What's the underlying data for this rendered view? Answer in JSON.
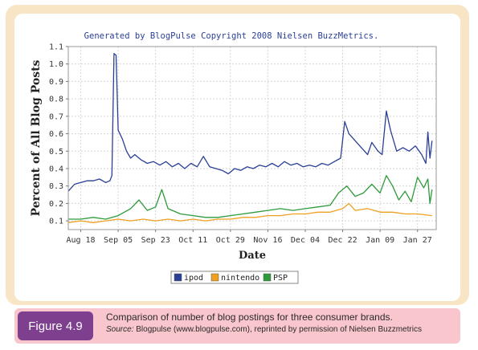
{
  "header": {
    "title": "Generated by BlogPulse Copyright 2008 Nielsen BuzzMetrics."
  },
  "figure": {
    "label": "Figure 4.9",
    "caption": "Comparison of number of blog postings for three consumer brands.",
    "source_lead": "Source:",
    "source_text": "Blogpulse (www.blogpulse.com), reprinted by permission of Nielsen Buzzmetrics"
  },
  "colors": {
    "ipod": "#2a3f96",
    "nintendo": "#f0a020",
    "PSP": "#2e9a3a",
    "frame": "#f8e5c5",
    "caption_bar": "#f8c6cc",
    "figure_label": "#7d3f8e",
    "title": "#2a3f96"
  },
  "chart_data": {
    "type": "line",
    "title": "Generated by BlogPulse Copyright 2008 Nielsen BuzzMetrics.",
    "xlabel": "Date",
    "ylabel": "Percent of All Blog Posts",
    "ylim": [
      0.05,
      1.1
    ],
    "y_ticks": [
      0.1,
      0.2,
      0.3,
      0.4,
      0.5,
      0.6,
      0.7,
      0.8,
      0.9,
      1.0,
      1.1
    ],
    "x_ticks": [
      "Aug 18",
      "Sep 05",
      "Sep 23",
      "Oct 11",
      "Oct 29",
      "Nov 16",
      "Dec 04",
      "Dec 22",
      "Jan 09",
      "Jan 27"
    ],
    "x_start": "Aug 12",
    "x_end": "Feb 05",
    "grid": true,
    "legend_position": "bottom",
    "series": [
      {
        "name": "ipod",
        "points": [
          [
            "Aug 12",
            0.27
          ],
          [
            "Aug 15",
            0.31
          ],
          [
            "Aug 18",
            0.32
          ],
          [
            "Aug 21",
            0.33
          ],
          [
            "Aug 24",
            0.33
          ],
          [
            "Aug 27",
            0.34
          ],
          [
            "Aug 30",
            0.32
          ],
          [
            "Sep 01",
            0.33
          ],
          [
            "Sep 02",
            0.36
          ],
          [
            "Sep 03",
            1.06
          ],
          [
            "Sep 04",
            1.05
          ],
          [
            "Sep 05",
            0.62
          ],
          [
            "Sep 07",
            0.57
          ],
          [
            "Sep 09",
            0.5
          ],
          [
            "Sep 11",
            0.46
          ],
          [
            "Sep 13",
            0.48
          ],
          [
            "Sep 16",
            0.45
          ],
          [
            "Sep 19",
            0.43
          ],
          [
            "Sep 22",
            0.44
          ],
          [
            "Sep 25",
            0.42
          ],
          [
            "Sep 28",
            0.44
          ],
          [
            "Oct 01",
            0.41
          ],
          [
            "Oct 04",
            0.43
          ],
          [
            "Oct 07",
            0.4
          ],
          [
            "Oct 10",
            0.43
          ],
          [
            "Oct 13",
            0.41
          ],
          [
            "Oct 16",
            0.47
          ],
          [
            "Oct 19",
            0.41
          ],
          [
            "Oct 22",
            0.4
          ],
          [
            "Oct 25",
            0.39
          ],
          [
            "Oct 28",
            0.37
          ],
          [
            "Oct 31",
            0.4
          ],
          [
            "Nov 03",
            0.39
          ],
          [
            "Nov 06",
            0.41
          ],
          [
            "Nov 09",
            0.4
          ],
          [
            "Nov 12",
            0.42
          ],
          [
            "Nov 15",
            0.41
          ],
          [
            "Nov 18",
            0.43
          ],
          [
            "Nov 21",
            0.41
          ],
          [
            "Nov 24",
            0.44
          ],
          [
            "Nov 27",
            0.42
          ],
          [
            "Nov 30",
            0.43
          ],
          [
            "Dec 03",
            0.41
          ],
          [
            "Dec 06",
            0.42
          ],
          [
            "Dec 09",
            0.41
          ],
          [
            "Dec 12",
            0.43
          ],
          [
            "Dec 15",
            0.42
          ],
          [
            "Dec 18",
            0.44
          ],
          [
            "Dec 21",
            0.46
          ],
          [
            "Dec 23",
            0.67
          ],
          [
            "Dec 25",
            0.6
          ],
          [
            "Dec 28",
            0.56
          ],
          [
            "Dec 31",
            0.52
          ],
          [
            "Jan 03",
            0.48
          ],
          [
            "Jan 05",
            0.55
          ],
          [
            "Jan 08",
            0.5
          ],
          [
            "Jan 10",
            0.48
          ],
          [
            "Jan 12",
            0.73
          ],
          [
            "Jan 14",
            0.62
          ],
          [
            "Jan 17",
            0.5
          ],
          [
            "Jan 20",
            0.52
          ],
          [
            "Jan 23",
            0.5
          ],
          [
            "Jan 26",
            0.53
          ],
          [
            "Jan 29",
            0.48
          ],
          [
            "Jan 31",
            0.43
          ],
          [
            "Feb 01",
            0.61
          ],
          [
            "Feb 02",
            0.46
          ],
          [
            "Feb 03",
            0.56
          ]
        ]
      },
      {
        "name": "nintendo",
        "points": [
          [
            "Aug 12",
            0.09
          ],
          [
            "Aug 18",
            0.1
          ],
          [
            "Aug 24",
            0.09
          ],
          [
            "Aug 30",
            0.1
          ],
          [
            "Sep 05",
            0.11
          ],
          [
            "Sep 11",
            0.1
          ],
          [
            "Sep 17",
            0.11
          ],
          [
            "Sep 23",
            0.1
          ],
          [
            "Sep 29",
            0.11
          ],
          [
            "Oct 05",
            0.1
          ],
          [
            "Oct 11",
            0.11
          ],
          [
            "Oct 17",
            0.1
          ],
          [
            "Oct 23",
            0.11
          ],
          [
            "Oct 29",
            0.11
          ],
          [
            "Nov 04",
            0.12
          ],
          [
            "Nov 10",
            0.12
          ],
          [
            "Nov 16",
            0.13
          ],
          [
            "Nov 22",
            0.13
          ],
          [
            "Nov 28",
            0.14
          ],
          [
            "Dec 04",
            0.14
          ],
          [
            "Dec 10",
            0.15
          ],
          [
            "Dec 16",
            0.15
          ],
          [
            "Dec 22",
            0.17
          ],
          [
            "Dec 25",
            0.2
          ],
          [
            "Dec 28",
            0.16
          ],
          [
            "Jan 03",
            0.17
          ],
          [
            "Jan 09",
            0.15
          ],
          [
            "Jan 15",
            0.15
          ],
          [
            "Jan 21",
            0.14
          ],
          [
            "Jan 27",
            0.14
          ],
          [
            "Feb 03",
            0.13
          ]
        ]
      },
      {
        "name": "PSP",
        "points": [
          [
            "Aug 12",
            0.11
          ],
          [
            "Aug 18",
            0.11
          ],
          [
            "Aug 24",
            0.12
          ],
          [
            "Aug 30",
            0.11
          ],
          [
            "Sep 05",
            0.13
          ],
          [
            "Sep 11",
            0.17
          ],
          [
            "Sep 15",
            0.22
          ],
          [
            "Sep 19",
            0.16
          ],
          [
            "Sep 23",
            0.18
          ],
          [
            "Sep 26",
            0.28
          ],
          [
            "Sep 29",
            0.17
          ],
          [
            "Oct 05",
            0.14
          ],
          [
            "Oct 11",
            0.13
          ],
          [
            "Oct 17",
            0.12
          ],
          [
            "Oct 23",
            0.12
          ],
          [
            "Oct 29",
            0.13
          ],
          [
            "Nov 04",
            0.14
          ],
          [
            "Nov 10",
            0.15
          ],
          [
            "Nov 16",
            0.16
          ],
          [
            "Nov 22",
            0.17
          ],
          [
            "Nov 28",
            0.16
          ],
          [
            "Dec 04",
            0.17
          ],
          [
            "Dec 10",
            0.18
          ],
          [
            "Dec 16",
            0.19
          ],
          [
            "Dec 20",
            0.26
          ],
          [
            "Dec 24",
            0.3
          ],
          [
            "Dec 28",
            0.24
          ],
          [
            "Jan 01",
            0.26
          ],
          [
            "Jan 05",
            0.31
          ],
          [
            "Jan 09",
            0.26
          ],
          [
            "Jan 12",
            0.36
          ],
          [
            "Jan 15",
            0.3
          ],
          [
            "Jan 18",
            0.22
          ],
          [
            "Jan 21",
            0.27
          ],
          [
            "Jan 24",
            0.21
          ],
          [
            "Jan 27",
            0.35
          ],
          [
            "Jan 30",
            0.29
          ],
          [
            "Feb 01",
            0.34
          ],
          [
            "Feb 02",
            0.2
          ],
          [
            "Feb 03",
            0.28
          ]
        ]
      }
    ]
  }
}
